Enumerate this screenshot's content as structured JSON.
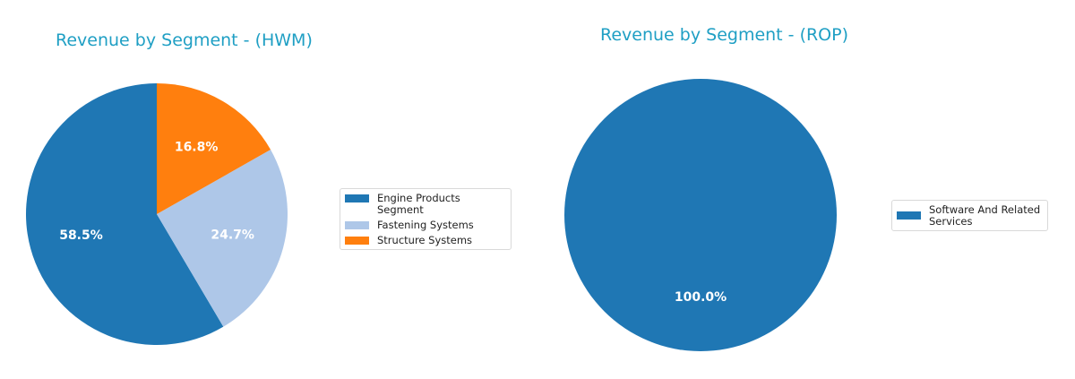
{
  "charts": [
    {
      "title": "Revenue by Segment - (HWM)",
      "legend": [
        {
          "label": "Engine Products Segment",
          "color": "#1f77b4"
        },
        {
          "label": "Fastening Systems",
          "color": "#aec7e8"
        },
        {
          "label": "Structure Systems",
          "color": "#ff7f0e"
        }
      ]
    },
    {
      "title": "Revenue by Segment - (ROP)",
      "legend": [
        {
          "label": "Software And Related\nServices",
          "color": "#1f77b4"
        }
      ]
    }
  ],
  "chart_data": [
    {
      "type": "pie",
      "title": "Revenue by Segment - (HWM)",
      "categories": [
        "Engine Products Segment",
        "Fastening Systems",
        "Structure Systems"
      ],
      "values": [
        58.5,
        24.7,
        16.8
      ],
      "labels": [
        "58.5%",
        "24.7%",
        "16.8%"
      ],
      "colors": [
        "#1f77b4",
        "#aec7e8",
        "#ff7f0e"
      ],
      "start_angle": 90,
      "direction": "counterclockwise",
      "legend_position": "right"
    },
    {
      "type": "pie",
      "title": "Revenue by Segment - (ROP)",
      "categories": [
        "Software And Related Services"
      ],
      "values": [
        100.0
      ],
      "labels": [
        "100.0%"
      ],
      "colors": [
        "#1f77b4"
      ],
      "start_angle": 90,
      "direction": "counterclockwise",
      "legend_position": "right"
    }
  ]
}
